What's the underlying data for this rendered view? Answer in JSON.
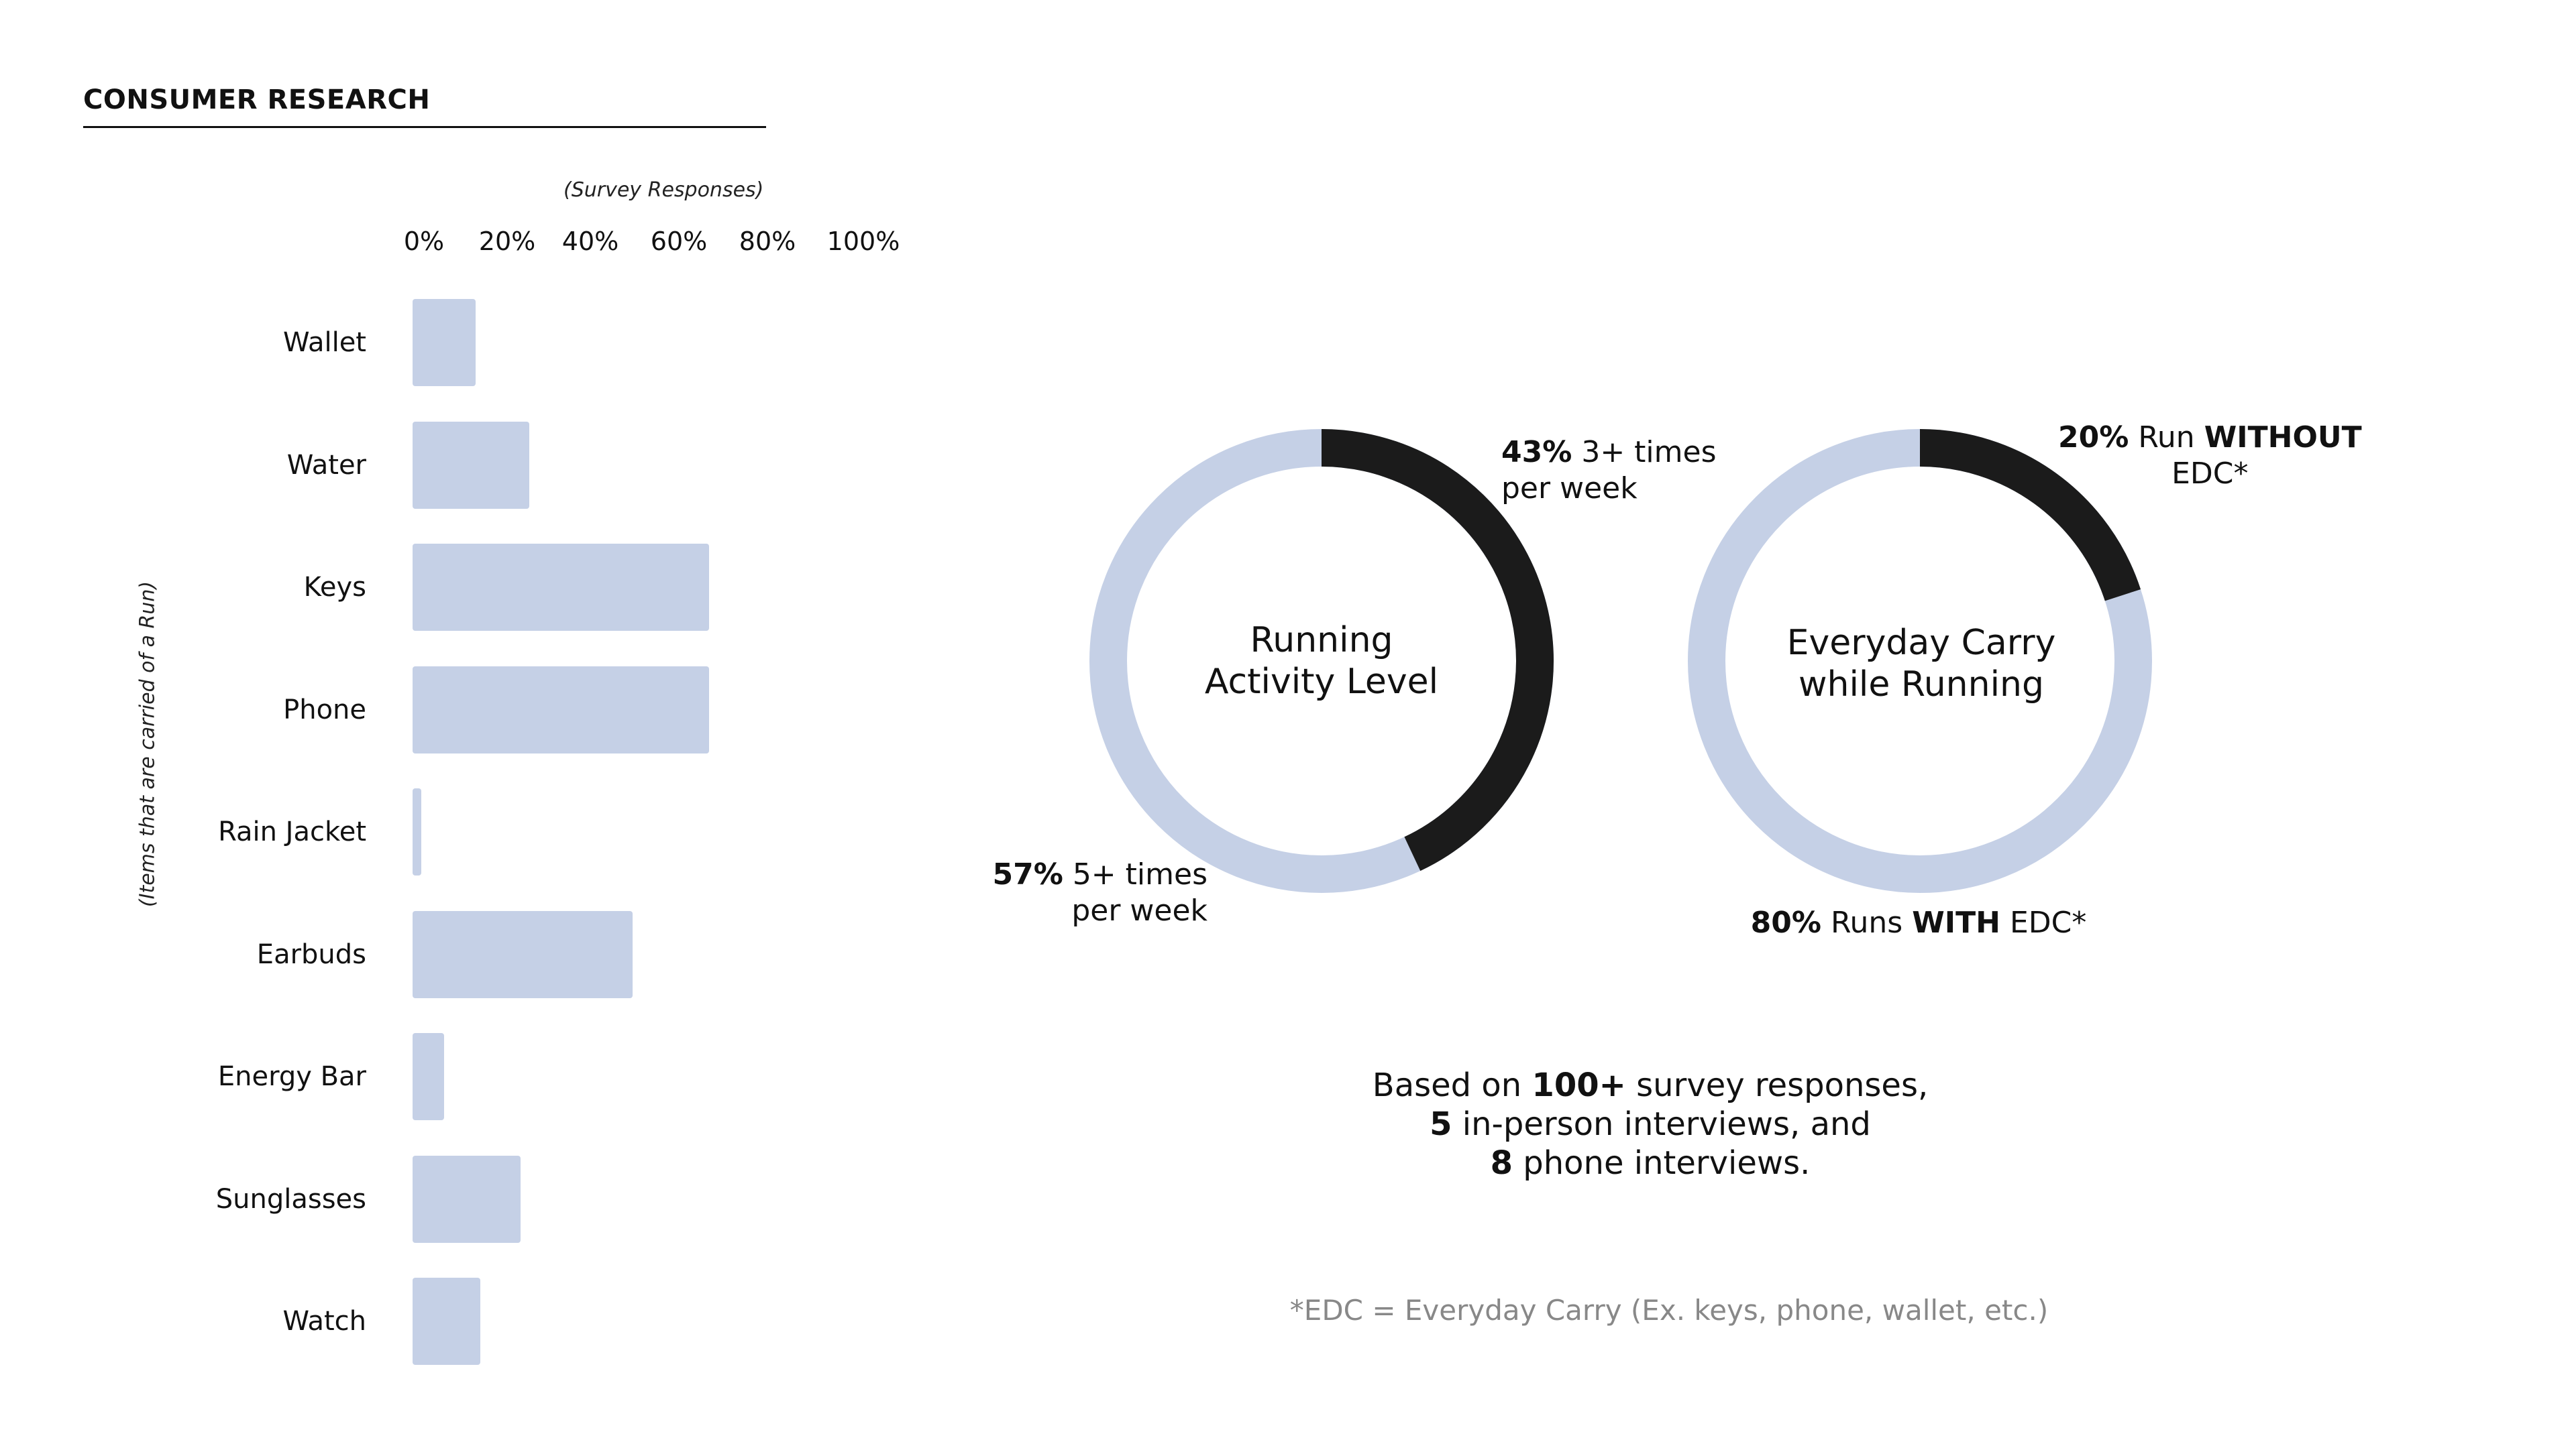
{
  "section_title": "CONSUMER RESEARCH",
  "colors": {
    "bar": "#c5d0e6",
    "ring_light": "#c5d0e6",
    "ring_dark": "#1b1b1b",
    "footnote": "#888888"
  },
  "chart_data": [
    {
      "type": "bar",
      "orientation": "horizontal",
      "title": "",
      "xlabel": "(Survey Responses)",
      "ylabel": "(Items that are carried of a Run)",
      "xlim": [
        0,
        100
      ],
      "ticks": [
        "0%",
        "20%",
        "40%",
        "60%",
        "80%",
        "100%"
      ],
      "tick_values": [
        0,
        20,
        40,
        60,
        80,
        100
      ],
      "grid": false,
      "categories": [
        "Wallet",
        "Water",
        "Keys",
        "Phone",
        "Rain Jacket",
        "Earbuds",
        "Energy Bar",
        "Sunglasses",
        "Watch"
      ],
      "values": [
        14,
        26,
        66,
        66,
        2,
        49,
        7,
        24,
        15
      ]
    },
    {
      "type": "pie",
      "variant": "donut",
      "title": "Running Activity Level",
      "slices": [
        {
          "value": 43,
          "pct": "43%",
          "text": "3+ times",
          "text2": "per week",
          "color": "#1b1b1b"
        },
        {
          "value": 57,
          "pct": "57%",
          "text": "5+ times",
          "text2": "per week",
          "color": "#c5d0e6"
        }
      ]
    },
    {
      "type": "pie",
      "variant": "donut",
      "title": "Everyday Carry while Running",
      "slices": [
        {
          "value": 20,
          "pct": "20%",
          "pre": "Run",
          "emph": "WITHOUT",
          "post": "EDC*",
          "color": "#1b1b1b"
        },
        {
          "value": 80,
          "pct": "80%",
          "pre": "Runs",
          "emph": "WITH",
          "post": "EDC*",
          "color": "#c5d0e6"
        }
      ]
    }
  ],
  "donut1_title_lines": [
    "Running",
    "Activity Level"
  ],
  "donut2_title_lines": [
    "Everyday Carry",
    "while Running"
  ],
  "summary": {
    "l1_pre": "Based on",
    "l1_bold": "100+",
    "l1_post": "survey responses,",
    "l2_bold": "5",
    "l2_post": "in-person interviews, and",
    "l3_bold": "8",
    "l3_post": "phone interviews."
  },
  "footnote": "*EDC = Everyday Carry (Ex. keys, phone, wallet, etc.)"
}
